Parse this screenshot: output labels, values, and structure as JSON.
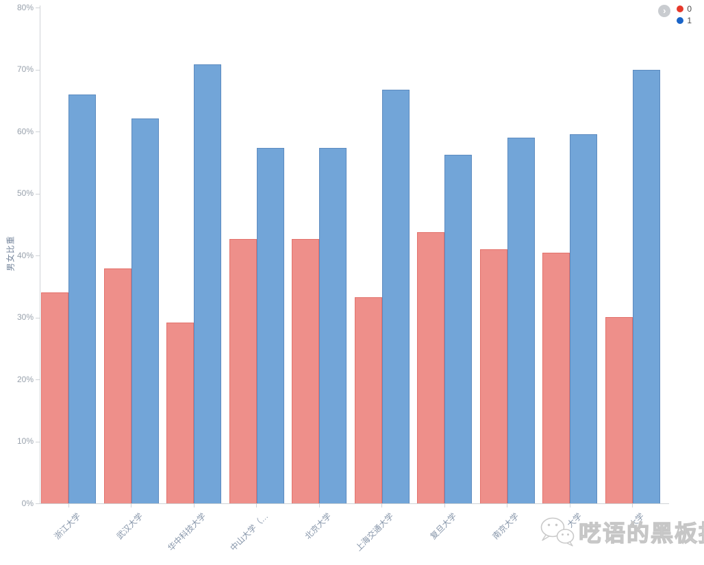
{
  "chart_data": {
    "type": "bar",
    "title": "",
    "xlabel": "",
    "ylabel": "男女比重",
    "ylim": [
      0,
      80
    ],
    "y_tick_labels": [
      "0%",
      "10%",
      "20%",
      "30%",
      "40%",
      "50%",
      "60%",
      "70%",
      "80%"
    ],
    "grid": false,
    "legend_position": "top-right",
    "categories": [
      "浙江大学",
      "武汉大学",
      "华中科技大学",
      "中山大学（…",
      "北京大学",
      "上海交通大学",
      "复旦大学",
      "南京大学",
      "大学",
      "大学"
    ],
    "series": [
      {
        "name": "0",
        "color": "#ee8f8a",
        "border_color": "#e3716b",
        "legend_dot_color": "#e6392b",
        "values": [
          34,
          37.9,
          29.2,
          42.6,
          42.7,
          33.3,
          43.8,
          41,
          40.4,
          30.1
        ]
      },
      {
        "name": "1",
        "color": "#72a5d8",
        "border_color": "#5b8abf",
        "legend_dot_color": "#1a64c8",
        "values": [
          66,
          62.1,
          70.8,
          57.4,
          57.3,
          66.7,
          56.2,
          59,
          59.6,
          69.9
        ]
      }
    ]
  },
  "legend": {
    "expander_icon": "›",
    "items": [
      {
        "label": "0",
        "color": "#e6392b"
      },
      {
        "label": "1",
        "color": "#1a64c8"
      }
    ]
  },
  "watermark": {
    "text": "呓语的黑板报",
    "icon": "wechat-icon"
  },
  "axis_colors": {
    "line": "#cfd2d6",
    "y_label": "#98a1ac",
    "x_label": "#8695a9",
    "y_title": "#76869c"
  }
}
